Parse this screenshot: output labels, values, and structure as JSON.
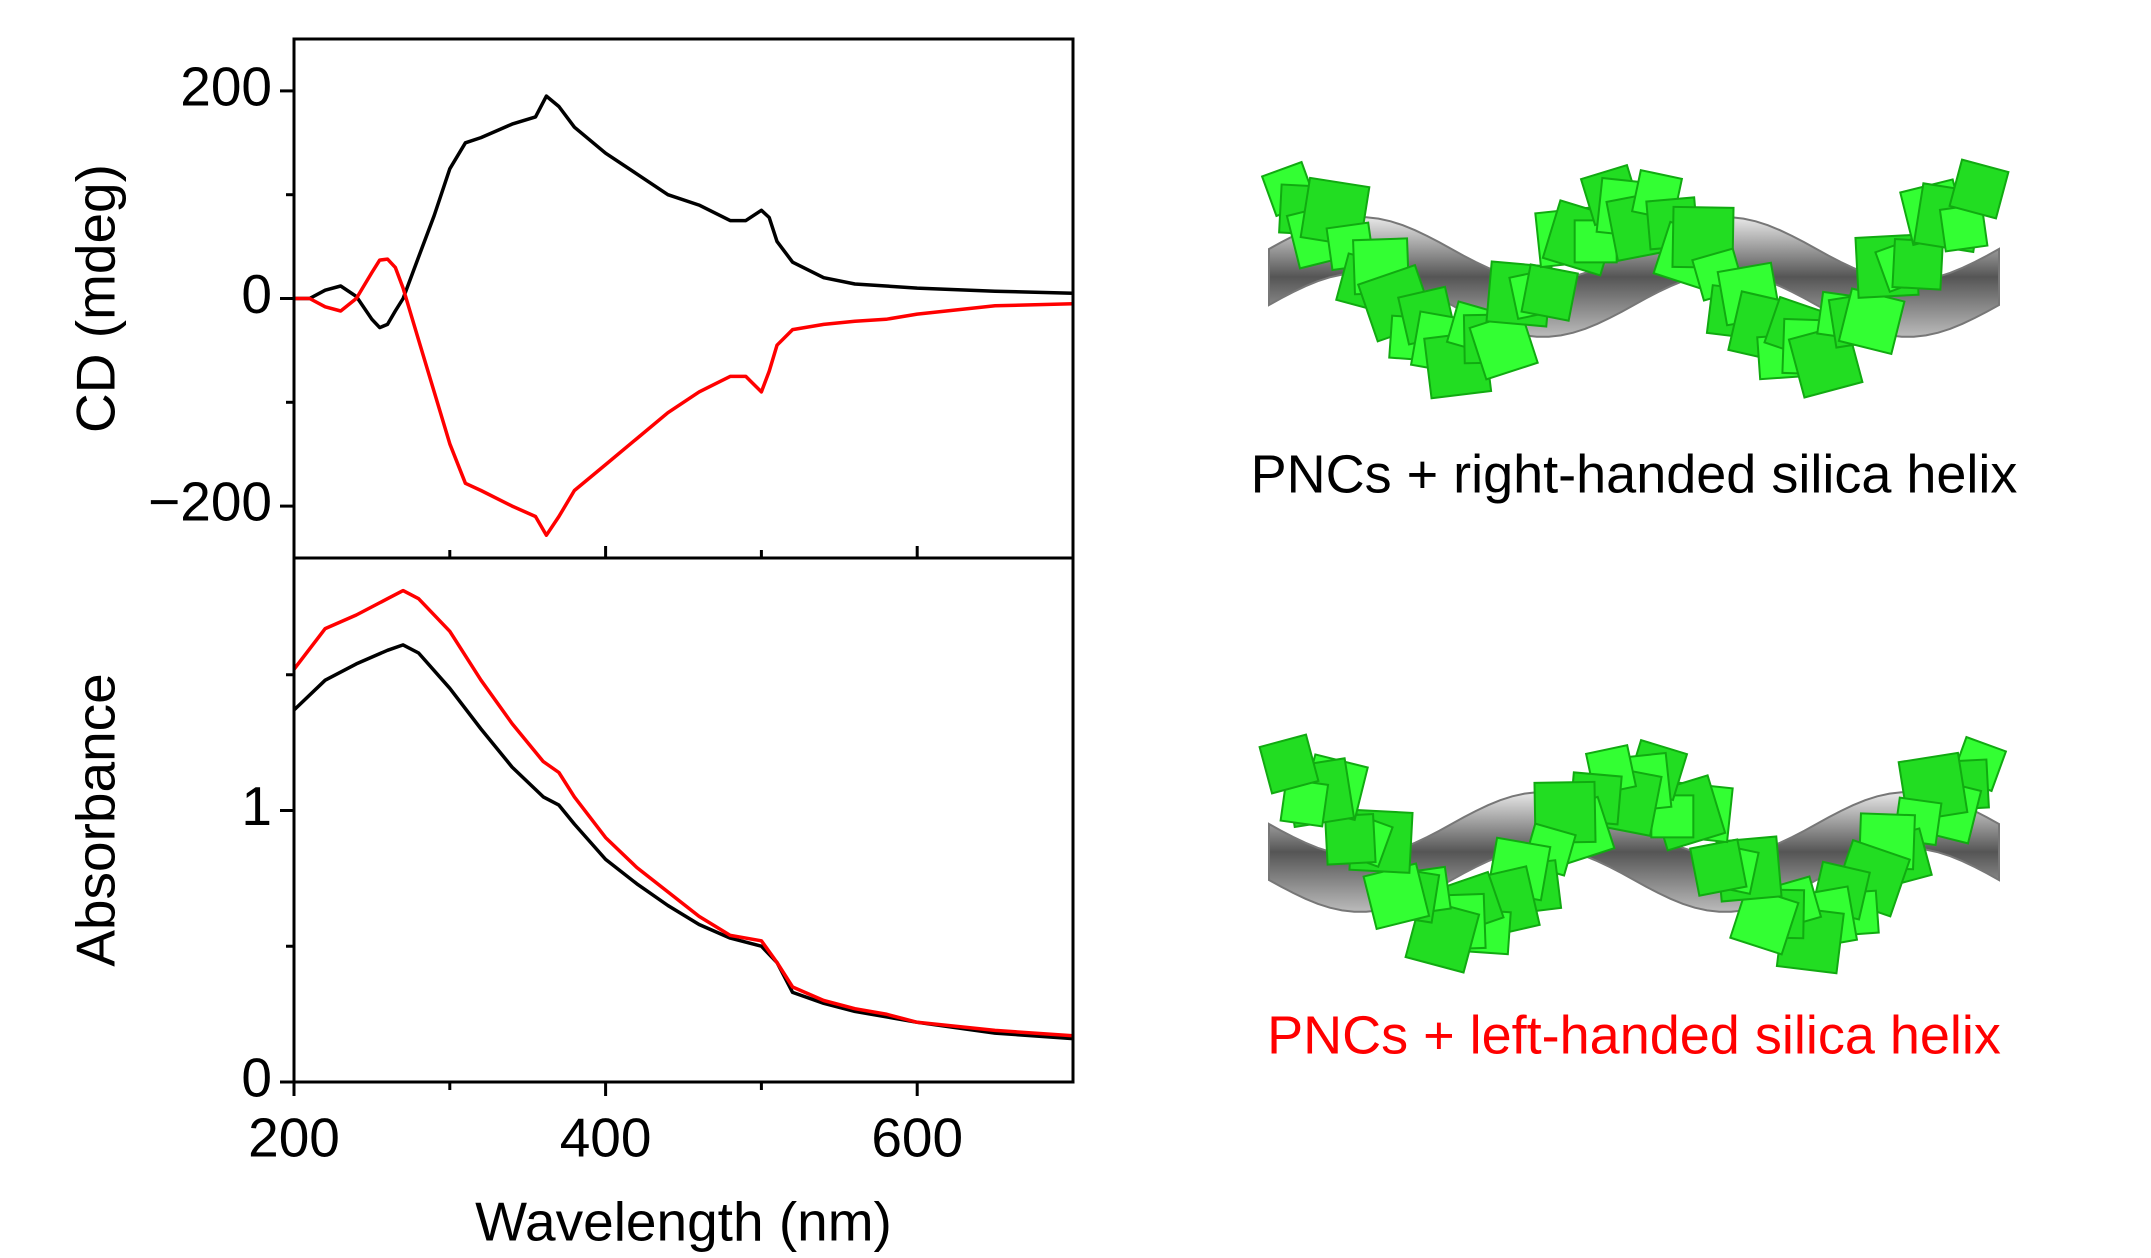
{
  "chart_data": [
    {
      "type": "line",
      "ylabel": "CD (mdeg)",
      "x": [
        200,
        210,
        220,
        230,
        240,
        250,
        255,
        260,
        265,
        270,
        280,
        290,
        300,
        310,
        320,
        340,
        355,
        362,
        370,
        380,
        400,
        420,
        440,
        460,
        480,
        490,
        500,
        505,
        510,
        520,
        540,
        560,
        580,
        600,
        650,
        700
      ],
      "xlim": [
        200,
        700
      ],
      "ylim": [
        -250,
        250
      ],
      "yticks": [
        {
          "value": -200,
          "label": "−200"
        },
        0,
        200
      ],
      "yminorticks": [
        -100,
        100
      ],
      "series": [
        {
          "color": "#000000",
          "values": [
            0,
            0,
            8,
            12,
            2,
            -20,
            -28,
            -25,
            -12,
            0,
            40,
            80,
            125,
            150,
            155,
            168,
            175,
            195,
            185,
            165,
            140,
            120,
            100,
            90,
            75,
            75,
            85,
            78,
            55,
            35,
            20,
            14,
            12,
            10,
            7,
            5
          ]
        },
        {
          "color": "#ff0000",
          "values": [
            0,
            0,
            -8,
            -12,
            0,
            25,
            37,
            38,
            30,
            10,
            -40,
            -90,
            -140,
            -178,
            -185,
            -200,
            -210,
            -228,
            -210,
            -185,
            -160,
            -135,
            -110,
            -90,
            -75,
            -75,
            -90,
            -70,
            -45,
            -30,
            -25,
            -22,
            -20,
            -15,
            -7,
            -5
          ]
        }
      ]
    },
    {
      "type": "line",
      "ylabel": "Absorbance",
      "xlabel": "Wavelength (nm)",
      "x": [
        200,
        220,
        240,
        260,
        270,
        280,
        300,
        320,
        340,
        360,
        370,
        380,
        400,
        420,
        440,
        460,
        480,
        500,
        510,
        520,
        540,
        560,
        580,
        600,
        650,
        700
      ],
      "xlim": [
        200,
        700
      ],
      "xticks": [
        200,
        400,
        600
      ],
      "xminorticks": [
        300,
        500
      ],
      "ylim": [
        0,
        1.93
      ],
      "yticks": [
        0,
        1
      ],
      "yminorticks": [
        0.5,
        1.5
      ],
      "series": [
        {
          "color": "#000000",
          "values": [
            1.37,
            1.48,
            1.54,
            1.59,
            1.61,
            1.58,
            1.45,
            1.3,
            1.16,
            1.05,
            1.02,
            0.95,
            0.82,
            0.73,
            0.65,
            0.58,
            0.53,
            0.5,
            0.44,
            0.33,
            0.29,
            0.26,
            0.24,
            0.22,
            0.18,
            0.16
          ]
        },
        {
          "color": "#ff0000",
          "values": [
            1.52,
            1.67,
            1.72,
            1.78,
            1.81,
            1.78,
            1.66,
            1.48,
            1.32,
            1.18,
            1.14,
            1.05,
            0.9,
            0.79,
            0.7,
            0.61,
            0.54,
            0.52,
            0.44,
            0.35,
            0.3,
            0.27,
            0.25,
            0.22,
            0.19,
            0.17
          ]
        }
      ]
    }
  ],
  "illustrations": [
    {
      "caption": "PNCs + right-handed silica helix",
      "color": "#000000"
    },
    {
      "caption": "PNCs + left-handed silica helix",
      "color": "#ff0000"
    }
  ]
}
